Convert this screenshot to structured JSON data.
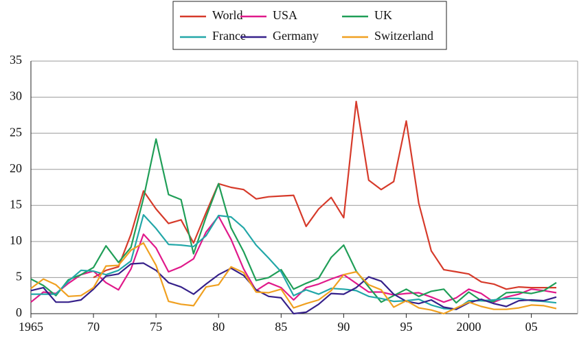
{
  "chart_data": {
    "type": "line",
    "x": [
      1965,
      1966,
      1967,
      1968,
      1969,
      1970,
      1971,
      1972,
      1973,
      1974,
      1975,
      1976,
      1977,
      1978,
      1979,
      1980,
      1981,
      1982,
      1983,
      1984,
      1985,
      1986,
      1987,
      1988,
      1989,
      1990,
      1991,
      1992,
      1993,
      1994,
      1995,
      1996,
      1997,
      1998,
      1999,
      2000,
      2001,
      2002,
      2003,
      2004,
      2005,
      2006,
      2007
    ],
    "series": [
      {
        "name": "World",
        "color": "#d63a2a",
        "values": [
          null,
          null,
          null,
          null,
          null,
          5,
          6,
          6.5,
          11,
          17,
          14.5,
          12.5,
          13,
          9.8,
          14,
          18,
          17.5,
          17.2,
          15.9,
          16.2,
          16.3,
          16.4,
          12.1,
          14.5,
          16.1,
          13.3,
          29.4,
          18.5,
          17.2,
          18.3,
          26.7,
          15.3,
          8.7,
          6.1,
          5.8,
          5.5,
          4.4,
          4.1,
          3.4,
          3.7,
          3.6,
          3.6,
          3.6
        ]
      },
      {
        "name": "USA",
        "color": "#e0198a",
        "values": [
          1.6,
          3.0,
          2.8,
          4.2,
          5.4,
          5.9,
          4.3,
          3.3,
          6.2,
          11,
          9.1,
          5.8,
          6.5,
          7.6,
          11.3,
          13.5,
          10.3,
          6.2,
          3.2,
          4.3,
          3.6,
          1.9,
          3.6,
          4.1,
          4.8,
          5.4,
          4.2,
          3.0,
          3.0,
          2.6,
          2.8,
          2.9,
          2.3,
          1.6,
          2.2,
          3.4,
          2.8,
          1.6,
          2.3,
          2.7,
          3.4,
          3.2,
          2.9
        ]
      },
      {
        "name": "UK",
        "color": "#1f9e57",
        "values": [
          4.8,
          3.9,
          2.5,
          4.7,
          5.4,
          6.4,
          9.4,
          7.1,
          9.2,
          16,
          24.2,
          16.5,
          15.8,
          8.3,
          13.4,
          18,
          11.9,
          8.6,
          4.6,
          5.0,
          6.1,
          3.4,
          4.2,
          4.9,
          7.8,
          9.5,
          5.9,
          3.7,
          1.6,
          2.5,
          3.4,
          2.4,
          3.1,
          3.4,
          1.5,
          3.0,
          1.8,
          1.7,
          2.9,
          3.0,
          2.8,
          3.2,
          4.3
        ]
      },
      {
        "name": "France",
        "color": "#22a7a8",
        "values": [
          2.7,
          2.7,
          2.7,
          4.5,
          6.0,
          5.9,
          5.4,
          6.0,
          7.3,
          13.7,
          11.8,
          9.6,
          9.5,
          9.3,
          10.8,
          13.6,
          13.4,
          11.9,
          9.5,
          7.7,
          5.8,
          2.5,
          3.3,
          2.7,
          3.5,
          3.4,
          3.2,
          2.4,
          2.1,
          1.7,
          1.8,
          2.0,
          1.2,
          0.7,
          0.6,
          1.8,
          1.8,
          1.9,
          2.1,
          2.1,
          1.8,
          1.7,
          1.5
        ]
      },
      {
        "name": "Germany",
        "color": "#35208a",
        "values": [
          3.2,
          3.6,
          1.6,
          1.6,
          1.9,
          3.4,
          5.2,
          5.5,
          6.9,
          7.0,
          6.0,
          4.3,
          3.7,
          2.7,
          4.1,
          5.4,
          6.3,
          5.3,
          3.3,
          2.4,
          2.2,
          0,
          0.2,
          1.3,
          2.8,
          2.7,
          3.6,
          5.1,
          4.5,
          2.7,
          1.7,
          1.4,
          1.9,
          0.9,
          0.6,
          1.5,
          2.0,
          1.4,
          1.0,
          1.8,
          1.9,
          1.8,
          2.3
        ]
      },
      {
        "name": "Switzerland",
        "color": "#f0a020",
        "values": [
          3.5,
          4.8,
          4.0,
          2.4,
          2.5,
          3.6,
          6.6,
          6.7,
          8.8,
          9.8,
          6.7,
          1.7,
          1.3,
          1.1,
          3.7,
          4.0,
          6.5,
          5.7,
          3.0,
          2.9,
          3.4,
          0.8,
          1.4,
          1.9,
          3.2,
          5.4,
          5.8,
          4.0,
          3.3,
          0.9,
          1.8,
          0.8,
          0.5,
          0.0,
          0.8,
          1.6,
          1.0,
          0.6,
          0.6,
          0.8,
          1.2,
          1.1,
          0.7
        ]
      }
    ],
    "xlim": [
      1965,
      2008.7
    ],
    "xticks": [
      1965,
      {
        "value": 1970,
        "label": "70"
      },
      {
        "value": 1975,
        "label": "75"
      },
      {
        "value": 1980,
        "label": "80"
      },
      {
        "value": 1985,
        "label": "85"
      },
      {
        "value": 1990,
        "label": "90"
      },
      {
        "value": 1995,
        "label": "95"
      },
      2000,
      {
        "value": 2005,
        "label": "05"
      }
    ],
    "ylim": [
      0,
      35
    ],
    "yticks": [
      0,
      5,
      10,
      15,
      20,
      25,
      30,
      35
    ],
    "grid": true,
    "legend": "top"
  }
}
